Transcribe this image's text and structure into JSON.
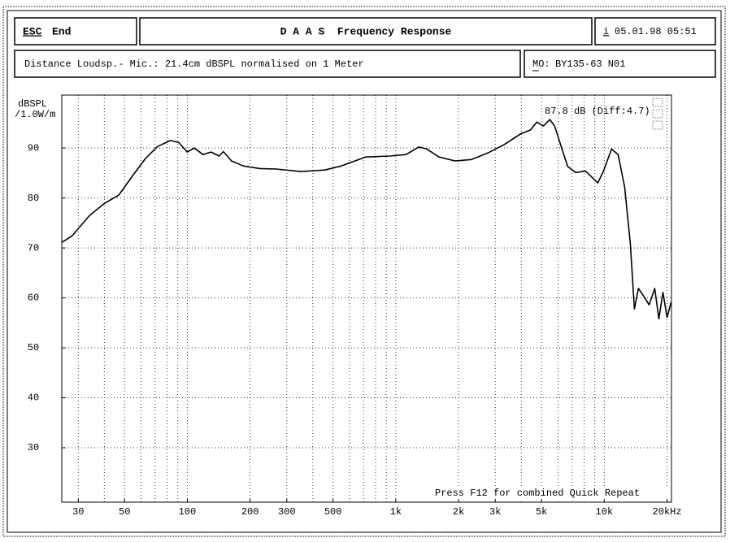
{
  "header": {
    "esc_key": "ESC",
    "esc_label": "End",
    "title": "D A A S  Frequency Response",
    "info_key": "i",
    "datetime": "05.01.98 05:51"
  },
  "info": {
    "distance": "Distance Loudsp.- Mic.: 21.4cm dBSPL normalised on 1 Meter",
    "model_label": "MO:",
    "model": "BY135-63 N01"
  },
  "chart_data": {
    "type": "line",
    "ylabel": [
      "dBSPL",
      "/1.0W/m"
    ],
    "annotation": "87.8 dB (Diff:4.7)",
    "footer_note": "Press F12 for combined Quick Repeat",
    "log_x": true,
    "grid": true,
    "xlim": [
      25,
      21000
    ],
    "ylim": [
      19.1,
      100.6
    ],
    "xticks": [
      30,
      50,
      100,
      200,
      300,
      500,
      {
        "value": 1000,
        "label": "1k"
      },
      {
        "value": 2000,
        "label": "2k"
      },
      {
        "value": 3000,
        "label": "3k"
      },
      {
        "value": 5000,
        "label": "5k"
      },
      {
        "value": 10000,
        "label": "10k"
      },
      {
        "value": 20000,
        "label": "20kHz"
      }
    ],
    "x_grid": [
      30,
      40,
      50,
      60,
      70,
      80,
      90,
      100,
      200,
      300,
      400,
      500,
      600,
      700,
      800,
      900,
      1000,
      2000,
      3000,
      4000,
      5000,
      6000,
      7000,
      8000,
      9000,
      10000,
      20000
    ],
    "yticks": [
      30,
      40,
      50,
      60,
      70,
      80,
      90
    ],
    "x": [
      25,
      28,
      34,
      40,
      47,
      55,
      63,
      72,
      83,
      91,
      100,
      108,
      119,
      130,
      142,
      149,
      163,
      186,
      223,
      267,
      349,
      457,
      547,
      716,
      940,
      1120,
      1290,
      1410,
      1610,
      1930,
      2310,
      2760,
      3310,
      3960,
      4420,
      4750,
      5100,
      5480,
      5780,
      6210,
      6670,
      7290,
      8130,
      9310,
      9910,
      10840,
      11650,
      12520,
      13330,
      13950,
      14590,
      15530,
      16400,
      17460,
      18280,
      19110,
      20010,
      20910
    ],
    "series": [
      {
        "color": "#000000",
        "values": [
          71.1,
          72.4,
          76.5,
          78.9,
          80.6,
          84.6,
          87.9,
          90.3,
          91.5,
          91.1,
          89.2,
          90,
          88.7,
          89.2,
          88.4,
          89.3,
          87.4,
          86.4,
          85.9,
          85.8,
          85.3,
          85.6,
          86.4,
          88.2,
          88.4,
          88.7,
          90.2,
          89.8,
          88.2,
          87.4,
          87.7,
          89.0,
          90.7,
          92.8,
          93.6,
          95.2,
          94.4,
          95.7,
          94.4,
          90.3,
          86.3,
          85.1,
          85.4,
          83.0,
          85.4,
          89.8,
          88.7,
          82.2,
          70.8,
          57.8,
          61.9,
          60.2,
          58.6,
          61.9,
          55.8,
          61.1,
          56.1,
          59.1
        ]
      }
    ]
  }
}
